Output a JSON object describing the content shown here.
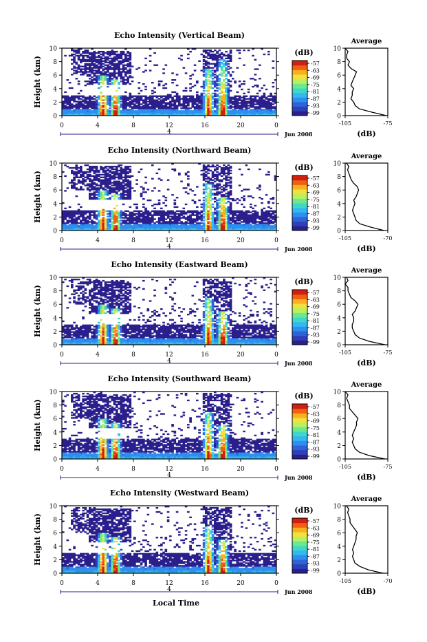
{
  "colors": {
    "scale": [
      "#2a1f8c",
      "#2f3fb8",
      "#2f63d8",
      "#2f8ff0",
      "#34b8f0",
      "#3fd8c8",
      "#6ee890",
      "#b8f060",
      "#f0e040",
      "#f8b020",
      "#f06010",
      "#d02010"
    ],
    "profile_line": "#000000"
  },
  "units_label": "(dB)",
  "colorbar_ticks": [
    "-57",
    "-63",
    "-69",
    "-75",
    "-81",
    "-87",
    "-93",
    "-99"
  ],
  "x_ticks": [
    "0",
    "4",
    "8",
    "12",
    "16",
    "20",
    "0"
  ],
  "y_ticks": [
    "0",
    "2",
    "4",
    "6",
    "8",
    "10"
  ],
  "ylabel": "Height (km)",
  "date_label": "4",
  "date_suffix": "Jun 2008",
  "xlabel": "Local Time",
  "average_title": "Average",
  "chart_data": [
    {
      "type": "heatmap",
      "title": "Echo Intensity (Vertical Beam)",
      "ylabel": "Height (km)",
      "xlim": [
        0,
        24
      ],
      "ylim": [
        0,
        10
      ],
      "colorbar": {
        "label": "(dB)",
        "range": [
          -99,
          -57
        ]
      },
      "average_profile": {
        "xlim": [
          -105,
          -75
        ],
        "x_ticks": [
          "-105",
          "-75"
        ],
        "xlabel": "(dB)",
        "heights": [
          0,
          0.5,
          1,
          1.5,
          2,
          2.5,
          3,
          3.5,
          4,
          4.5,
          5,
          5.5,
          6,
          6.5,
          7,
          7.5,
          8,
          8.5,
          9,
          9.5,
          10
        ],
        "values": [
          -76,
          -86,
          -95,
          -98,
          -99,
          -101,
          -100,
          -100,
          -99,
          -101,
          -100,
          -99,
          -98,
          -97,
          -101,
          -103,
          -102,
          -104,
          -104,
          -103,
          -105
        ]
      }
    },
    {
      "type": "heatmap",
      "title": "Echo Intensity (Northward Beam)",
      "ylabel": "Height (km)",
      "xlim": [
        0,
        24
      ],
      "ylim": [
        0,
        10
      ],
      "colorbar": {
        "label": "(dB)",
        "range": [
          -99,
          -57
        ]
      },
      "average_profile": {
        "xlim": [
          -105,
          -70
        ],
        "x_ticks": [
          "-105",
          "-70"
        ],
        "xlabel": "(dB)",
        "heights": [
          0,
          0.5,
          1,
          1.5,
          2,
          2.5,
          3,
          3.5,
          4,
          4.5,
          5,
          5.5,
          6,
          6.5,
          7,
          7.5,
          8,
          8.5,
          9,
          9.5,
          10
        ],
        "values": [
          -73,
          -84,
          -93,
          -96,
          -97,
          -98,
          -99,
          -98,
          -97,
          -98,
          -96,
          -95,
          -94,
          -95,
          -98,
          -100,
          -101,
          -102,
          -103,
          -102,
          -104
        ]
      }
    },
    {
      "type": "heatmap",
      "title": "Echo Intensity (Eastward Beam)",
      "ylabel": "Height (km)",
      "xlim": [
        0,
        24
      ],
      "ylim": [
        0,
        10
      ],
      "colorbar": {
        "label": "(dB)",
        "range": [
          -99,
          -57
        ]
      },
      "average_profile": {
        "xlim": [
          -105,
          -75
        ],
        "x_ticks": [
          "-105",
          "-75"
        ],
        "xlabel": "(dB)",
        "heights": [
          0,
          0.5,
          1,
          1.5,
          2,
          2.5,
          3,
          3.5,
          4,
          4.5,
          5,
          5.5,
          6,
          6.5,
          7,
          7.5,
          8,
          8.5,
          9,
          9.5,
          10
        ],
        "values": [
          -77,
          -88,
          -95,
          -98,
          -99,
          -100,
          -100,
          -99,
          -99,
          -100,
          -98,
          -97,
          -96,
          -98,
          -101,
          -102,
          -103,
          -103,
          -105,
          -103,
          -104
        ]
      }
    },
    {
      "type": "heatmap",
      "title": "Echo Intensity (Southward Beam)",
      "ylabel": "Height (km)",
      "xlim": [
        0,
        24
      ],
      "ylim": [
        0,
        10
      ],
      "colorbar": {
        "label": "(dB)",
        "range": [
          -99,
          -57
        ]
      },
      "average_profile": {
        "xlim": [
          -105,
          -75
        ],
        "x_ticks": [
          "-105",
          "-75"
        ],
        "xlabel": "(dB)",
        "heights": [
          0,
          0.5,
          1,
          1.5,
          2,
          2.5,
          3,
          3.5,
          4,
          4.5,
          5,
          5.5,
          6,
          6.5,
          7,
          7.5,
          8,
          8.5,
          9,
          9.5,
          10
        ],
        "values": [
          -77,
          -88,
          -95,
          -98,
          -99,
          -100,
          -99,
          -100,
          -99,
          -98,
          -97,
          -97,
          -96,
          -98,
          -100,
          -102,
          -102,
          -103,
          -104,
          -103,
          -105
        ]
      }
    },
    {
      "type": "heatmap",
      "title": "Echo Intensity (Westward Beam)",
      "ylabel": "Height (km)",
      "xlim": [
        0,
        24
      ],
      "ylim": [
        0,
        10
      ],
      "colorbar": {
        "label": "(dB)",
        "range": [
          -99,
          -57
        ]
      },
      "average_profile": {
        "xlim": [
          -105,
          -70
        ],
        "x_ticks": [
          "-105",
          "-70"
        ],
        "xlabel": "(dB)",
        "heights": [
          0,
          0.5,
          1,
          1.5,
          2,
          2.5,
          3,
          3.5,
          4,
          4.5,
          5,
          5.5,
          6,
          6.5,
          7,
          7.5,
          8,
          8.5,
          9,
          9.5,
          10
        ],
        "values": [
          -74,
          -86,
          -93,
          -97,
          -98,
          -99,
          -98,
          -99,
          -98,
          -97,
          -96,
          -96,
          -95,
          -97,
          -99,
          -101,
          -101,
          -102,
          -103,
          -102,
          -104
        ]
      }
    }
  ]
}
